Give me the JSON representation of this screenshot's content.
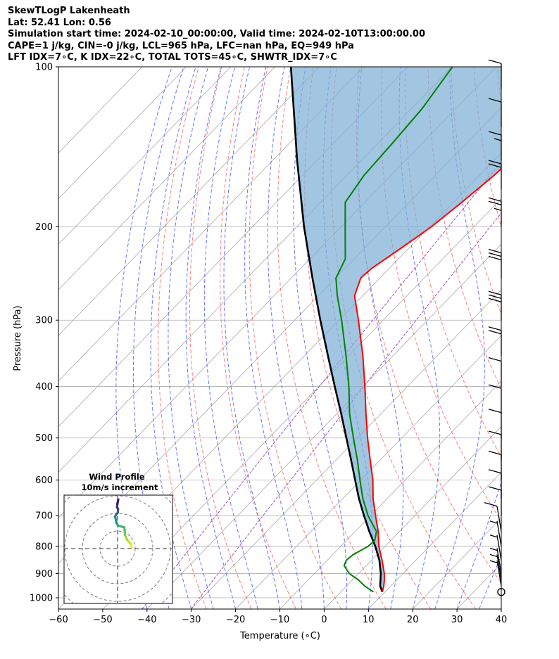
{
  "header": {
    "line1": "SkewTLogP Lakenheath",
    "line2": "Lat: 52.41   Lon: 0.56",
    "line3": "Simulation start time: 2024-02-10_00:00:00, Valid time: 2024-02-10T13:00:00.00",
    "line4": "CAPE=1 j/kg, CIN=-0 j/kg, LCL=965 hPa, LFC=nan hPa, EQ=949 hPa",
    "line5": "LFT IDX=7∘C, K IDX=22∘C, TOTAL TOTS=45∘C, SHWTR_IDX=7∘C"
  },
  "colors": {
    "temperature": "#ff0000",
    "dewpoint": "#008000",
    "parcel": "#000000",
    "cape_fill": "#7eb0d5",
    "dry_adiabat": "#ff6666",
    "moist_adiabat": "#5566ff",
    "mixing_ratio": "#a050c0",
    "isotherm": "#aaaaaa",
    "grid": "#b0b0b0"
  },
  "chart_data": [
    {
      "type": "line",
      "subtype": "skew-t log-p",
      "xlabel": "Temperature (∘C)",
      "ylabel": "Pressure (hPa)",
      "xlim": [
        -60,
        40
      ],
      "ylim": [
        1050,
        100
      ],
      "y_scale": "log",
      "x_ticks": [
        -60,
        -50,
        -40,
        -30,
        -20,
        -10,
        0,
        10,
        20,
        30,
        40
      ],
      "x_tick_labels": [
        "−60",
        "−50",
        "−40",
        "−30",
        "−20",
        "−10",
        "0",
        "10",
        "20",
        "30",
        "40"
      ],
      "y_ticks": [
        1000,
        900,
        800,
        700,
        600,
        500,
        400,
        300,
        200,
        100
      ],
      "y_tick_labels": [
        "1000",
        "900",
        "800",
        "700",
        "600",
        "500",
        "400",
        "300",
        "200",
        "100"
      ],
      "grid": true,
      "series": [
        {
          "role": "temperature",
          "p": [
            975,
            950,
            925,
            900,
            850,
            800,
            750,
            700,
            650,
            600,
            550,
            500,
            450,
            400,
            350,
            300,
            270,
            250,
            240,
            220,
            200,
            180,
            160,
            140,
            120,
            100
          ],
          "t": [
            9.4,
            8.4,
            7.2,
            5.8,
            2.4,
            -1.4,
            -4.8,
            -8.9,
            -13.2,
            -17.3,
            -22.3,
            -27.7,
            -33.4,
            -39.6,
            -46.8,
            -55.6,
            -61.8,
            -64.3,
            -64.0,
            -61.8,
            -59.6,
            -58.1,
            -56.7,
            -56.0,
            -56.0,
            -56.9
          ]
        },
        {
          "role": "dewpoint",
          "p": [
            975,
            950,
            925,
            900,
            870,
            850,
            830,
            800,
            780,
            750,
            700,
            650,
            600,
            550,
            500,
            450,
            400,
            350,
            300,
            270,
            250,
            230,
            200,
            180,
            160,
            140,
            120,
            100
          ],
          "t": [
            7.4,
            4.1,
            1.3,
            -2.1,
            -5.0,
            -5.7,
            -5.4,
            -3.8,
            -3.6,
            -5.2,
            -10.6,
            -15.5,
            -20.2,
            -25.2,
            -30.9,
            -37.1,
            -43.2,
            -50.6,
            -59.4,
            -65.7,
            -69.9,
            -72.0,
            -79.1,
            -84.4,
            -86.1,
            -86.7,
            -87.6,
            -89.9
          ]
        },
        {
          "role": "parcel",
          "p": [
            975,
            950,
            900,
            850,
            800,
            750,
            700,
            650,
            600,
            550,
            500,
            450,
            400,
            350,
            300,
            250,
            200,
            150,
            100
          ],
          "t": [
            9.4,
            7.6,
            5.0,
            1.8,
            -2.2,
            -6.8,
            -11.5,
            -16.4,
            -21.3,
            -26.6,
            -32.5,
            -39.0,
            -46.4,
            -54.7,
            -64.2,
            -75.2,
            -88.4,
            -104.5,
            -126.4
          ]
        }
      ],
      "shaded_region": "CAPE/CIN area between temperature and parcel profiles"
    },
    {
      "type": "line",
      "subtype": "hodograph",
      "title": "Wind Profile",
      "subtitle": "10m/s increment",
      "ring_increment_ms": 10,
      "u": [
        8,
        7.5,
        5.5,
        4.2,
        4.1,
        3.8,
        0.2,
        -0.6,
        -1.4,
        -0.8,
        0.1,
        0.3,
        -0.3,
        -0.1,
        0.4
      ],
      "v": [
        1,
        2.7,
        4.9,
        7.6,
        10.1,
        12.1,
        13.1,
        14.6,
        18.2,
        19.4,
        20.4,
        22.5,
        23.5,
        25.5,
        27.9
      ]
    }
  ],
  "wind_barbs": [
    {
      "p": 975,
      "barbs": "calm"
    },
    {
      "p": 950,
      "barbs": "1 half"
    },
    {
      "p": 925,
      "barbs": "1 half"
    },
    {
      "p": 900,
      "barbs": "1 half"
    },
    {
      "p": 850,
      "barbs": "1 half"
    },
    {
      "p": 800,
      "barbs": "1 half"
    },
    {
      "p": 750,
      "barbs": "1 full"
    },
    {
      "p": 700,
      "barbs": "1 full"
    },
    {
      "p": 650,
      "barbs": "1 full"
    },
    {
      "p": 600,
      "barbs": "1 full"
    },
    {
      "p": 550,
      "barbs": "1 full"
    },
    {
      "p": 500,
      "barbs": "1 full"
    },
    {
      "p": 450,
      "barbs": "1 full"
    },
    {
      "p": 400,
      "barbs": "1 full"
    },
    {
      "p": 350,
      "barbs": "2 full"
    },
    {
      "p": 300,
      "barbs": "3 full"
    },
    {
      "p": 250,
      "barbs": "3 full"
    },
    {
      "p": 200,
      "barbs": "2 full 1 half"
    },
    {
      "p": 170,
      "barbs": "2 full"
    },
    {
      "p": 150,
      "barbs": "1 full 1 half"
    },
    {
      "p": 130,
      "barbs": "1 full"
    },
    {
      "p": 110,
      "barbs": "1 full"
    }
  ]
}
